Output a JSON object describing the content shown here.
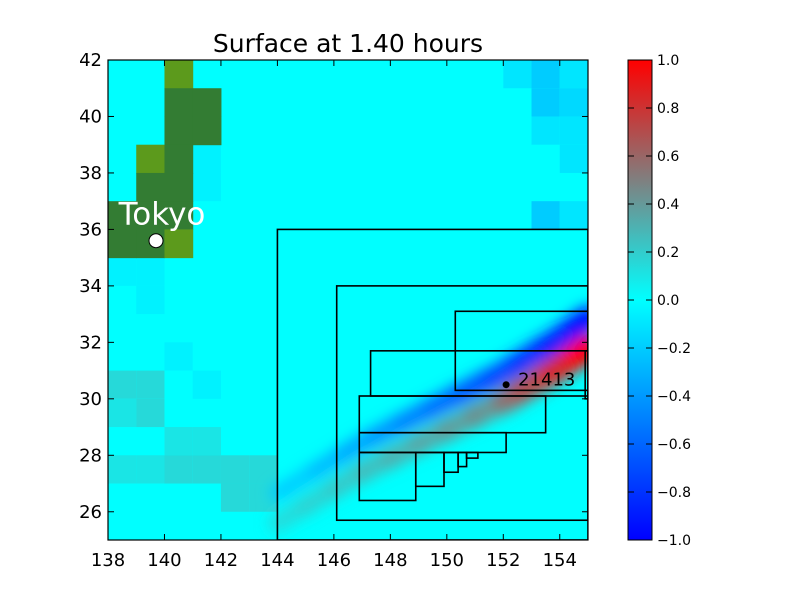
{
  "chart_data": {
    "type": "heatmap",
    "title": "Surface at 1.40 hours",
    "xlabel": "",
    "ylabel": "",
    "xlim": [
      138,
      155
    ],
    "ylim": [
      25,
      42
    ],
    "x_ticks": [
      "138",
      "140",
      "142",
      "144",
      "146",
      "148",
      "150",
      "152",
      "154"
    ],
    "x_tick_values": [
      138,
      140,
      142,
      144,
      146,
      148,
      150,
      152,
      154
    ],
    "y_ticks": [
      "26",
      "28",
      "30",
      "32",
      "34",
      "36",
      "38",
      "40",
      "42"
    ],
    "y_tick_values": [
      26,
      28,
      30,
      32,
      34,
      36,
      38,
      40,
      42
    ],
    "colorbar": {
      "range": [
        -1.0,
        1.0
      ],
      "ticks": [
        "1.0",
        "0.8",
        "0.6",
        "0.4",
        "0.2",
        "0.0",
        "−0.2",
        "−0.4",
        "−0.6",
        "−0.8",
        "−1.0"
      ],
      "tick_values": [
        1.0,
        0.8,
        0.6,
        0.4,
        0.2,
        0.0,
        -0.2,
        -0.4,
        -0.6,
        -0.8,
        -1.0
      ],
      "colors": [
        "#0000ff",
        "#00ffff",
        "#ff0000"
      ]
    },
    "ocean_color": "#00ffff",
    "land_colors": [
      "#337c33",
      "#5c9a1c"
    ],
    "land_cells": [
      {
        "lon": 140,
        "lat": 41,
        "shade": 1
      },
      {
        "lon": 140,
        "lat": 40,
        "shade": 0
      },
      {
        "lon": 141,
        "lat": 40,
        "shade": 0
      },
      {
        "lon": 140,
        "lat": 39,
        "shade": 0
      },
      {
        "lon": 141,
        "lat": 39,
        "shade": 0
      },
      {
        "lon": 139,
        "lat": 38,
        "shade": 1
      },
      {
        "lon": 140,
        "lat": 38,
        "shade": 0
      },
      {
        "lon": 139,
        "lat": 37,
        "shade": 0
      },
      {
        "lon": 140,
        "lat": 37,
        "shade": 0
      },
      {
        "lon": 138,
        "lat": 36,
        "shade": 0
      },
      {
        "lon": 139,
        "lat": 36,
        "shade": 0
      },
      {
        "lon": 140,
        "lat": 36,
        "shade": 0
      },
      {
        "lon": 138,
        "lat": 35,
        "shade": 0
      },
      {
        "lon": 139,
        "lat": 35,
        "shade": 0
      },
      {
        "lon": 140,
        "lat": 35,
        "shade": 1
      }
    ],
    "surface_cells": [
      {
        "lon": 152,
        "lat": 41,
        "value": -0.1
      },
      {
        "lon": 153,
        "lat": 41,
        "value": -0.2
      },
      {
        "lon": 154,
        "lat": 41,
        "value": -0.1
      },
      {
        "lon": 153,
        "lat": 40,
        "value": -0.2
      },
      {
        "lon": 154,
        "lat": 40,
        "value": -0.15
      },
      {
        "lon": 153,
        "lat": 39,
        "value": -0.1
      },
      {
        "lon": 154,
        "lat": 39,
        "value": -0.1
      },
      {
        "lon": 154,
        "lat": 38,
        "value": -0.1
      },
      {
        "lon": 153,
        "lat": 36,
        "value": -0.2
      },
      {
        "lon": 154,
        "lat": 36,
        "value": -0.1
      },
      {
        "lon": 141,
        "lat": 38,
        "value": -0.05
      },
      {
        "lon": 141,
        "lat": 37,
        "value": -0.05
      },
      {
        "lon": 138,
        "lat": 34,
        "value": -0.05
      },
      {
        "lon": 139,
        "lat": 34,
        "value": -0.05
      },
      {
        "lon": 139,
        "lat": 33,
        "value": -0.05
      },
      {
        "lon": 140,
        "lat": 31,
        "value": -0.05
      },
      {
        "lon": 141,
        "lat": 30,
        "value": -0.05
      },
      {
        "lon": 138,
        "lat": 30,
        "value": 0.15
      },
      {
        "lon": 139,
        "lat": 30,
        "value": 0.15
      },
      {
        "lon": 138,
        "lat": 29,
        "value": 0.1
      },
      {
        "lon": 139,
        "lat": 29,
        "value": 0.15
      },
      {
        "lon": 140,
        "lat": 28,
        "value": 0.1
      },
      {
        "lon": 141,
        "lat": 28,
        "value": 0.1
      },
      {
        "lon": 138,
        "lat": 27,
        "value": 0.1
      },
      {
        "lon": 139,
        "lat": 27,
        "value": 0.1
      },
      {
        "lon": 140,
        "lat": 27,
        "value": 0.15
      },
      {
        "lon": 141,
        "lat": 27,
        "value": 0.15
      },
      {
        "lon": 142,
        "lat": 27,
        "value": 0.15
      },
      {
        "lon": 143,
        "lat": 27,
        "value": 0.15
      },
      {
        "lon": 142,
        "lat": 26,
        "value": 0.15
      },
      {
        "lon": 143,
        "lat": 26,
        "value": 0.15
      }
    ],
    "wave_band": {
      "center_arc": [
        [
          155,
          32.3
        ],
        [
          154,
          31.6
        ],
        [
          153,
          31.0
        ],
        [
          152,
          30.4
        ],
        [
          151,
          29.9
        ],
        [
          150,
          29.4
        ],
        [
          149,
          28.9
        ],
        [
          148,
          28.4
        ],
        [
          147,
          27.9
        ],
        [
          146,
          27.3
        ],
        [
          145,
          26.7
        ],
        [
          144,
          26.1
        ]
      ],
      "positive_offset_lat": -0.5,
      "negative_offset_lat": 0.55
    },
    "refinement_boxes": [
      {
        "x0": 144.0,
        "x1": 155.0,
        "y0": 25.0,
        "y1": 36.0
      },
      {
        "x0": 146.1,
        "x1": 155.0,
        "y0": 25.7,
        "y1": 34.0
      },
      {
        "x0": 150.3,
        "x1": 155.0,
        "y0": 30.3,
        "y1": 33.1
      },
      {
        "x0": 147.3,
        "x1": 155.0,
        "y0": 30.1,
        "y1": 31.7
      },
      {
        "x0": 154.9,
        "x1": 155.0,
        "y0": 30.0,
        "y1": 31.7
      },
      {
        "x0": 146.9,
        "x1": 153.5,
        "y0": 28.8,
        "y1": 30.1
      },
      {
        "x0": 146.9,
        "x1": 152.1,
        "y0": 28.1,
        "y1": 28.8
      },
      {
        "x0": 146.9,
        "x1": 148.9,
        "y0": 26.4,
        "y1": 28.1
      },
      {
        "x0": 148.9,
        "x1": 149.9,
        "y0": 26.9,
        "y1": 28.1
      },
      {
        "x0": 149.9,
        "x1": 150.4,
        "y0": 27.4,
        "y1": 28.1
      },
      {
        "x0": 150.4,
        "x1": 150.7,
        "y0": 27.6,
        "y1": 28.1
      },
      {
        "x0": 150.7,
        "x1": 151.1,
        "y0": 27.9,
        "y1": 28.1
      }
    ],
    "annotations": [
      {
        "text": "Tokyo",
        "lon": 139.7,
        "lat": 35.6
      },
      {
        "text": "21413",
        "lon": 152.1,
        "lat": 30.5
      }
    ]
  }
}
